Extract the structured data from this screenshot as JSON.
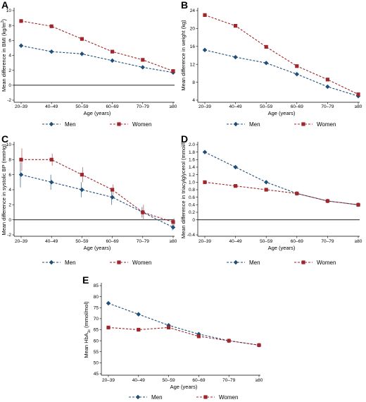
{
  "colors": {
    "men": "#1f4e79",
    "women": "#a0262c",
    "zero_line": "#000000",
    "error_bar": "#c07a7a"
  },
  "legend": {
    "men": "Men",
    "women": "Women"
  },
  "chart_data": [
    {
      "panel": "A",
      "type": "line",
      "categories": [
        "20–39",
        "40–49",
        "50–59",
        "60–69",
        "70–79",
        "≥80"
      ],
      "xlabel": "Age (years)",
      "ylabel": "Mean difference in BMI (kg/m²)",
      "ylim": [
        -2,
        10
      ],
      "yticks": [
        -2,
        0,
        2,
        4,
        6,
        8,
        10
      ],
      "zero_line": true,
      "series": [
        {
          "name": "Men",
          "values": [
            5.3,
            4.5,
            4.2,
            3.3,
            2.4,
            1.7
          ]
        },
        {
          "name": "Women",
          "values": [
            8.6,
            7.9,
            6.2,
            4.5,
            3.4,
            1.9
          ]
        }
      ]
    },
    {
      "panel": "B",
      "type": "line",
      "categories": [
        "20–39",
        "40–49",
        "50–59",
        "60–69",
        "70–79",
        "≥80"
      ],
      "xlabel": "Age (years)",
      "ylabel": "Mean difference in weight (kg)",
      "ylim": [
        4,
        24
      ],
      "yticks": [
        4,
        8,
        12,
        16,
        20,
        24
      ],
      "zero_line": false,
      "series": [
        {
          "name": "Men",
          "values": [
            15.2,
            13.6,
            12.3,
            9.8,
            7.0,
            4.9
          ]
        },
        {
          "name": "Women",
          "values": [
            23.0,
            20.6,
            15.9,
            11.6,
            8.6,
            5.3
          ]
        }
      ]
    },
    {
      "panel": "C",
      "type": "line",
      "categories": [
        "20–39",
        "40–49",
        "50–59",
        "60–69",
        "70–79",
        "≥80"
      ],
      "xlabel": "Age (years)",
      "ylabel": "Mean difference in systolic BP (mmHg)",
      "ylim": [
        -2,
        10
      ],
      "yticks": [
        -2,
        0,
        2,
        4,
        6,
        8,
        10
      ],
      "zero_line": true,
      "series": [
        {
          "name": "Men",
          "values": [
            6.0,
            5.0,
            4.0,
            3.0,
            1.0,
            -1.0
          ],
          "ci": [
            [
              4.3,
              7.7
            ],
            [
              4.0,
              6.0
            ],
            [
              3.0,
              5.0
            ],
            [
              2.0,
              4.0
            ],
            [
              0.3,
              1.7
            ],
            [
              -1.4,
              -0.6
            ]
          ]
        },
        {
          "name": "Women",
          "values": [
            8.0,
            8.0,
            6.0,
            4.0,
            1.0,
            -0.3
          ],
          "ci": [
            [
              6.5,
              9.5
            ],
            [
              7.2,
              8.8
            ],
            [
              5.0,
              7.0
            ],
            [
              3.3,
              4.7
            ],
            [
              0.0,
              2.0
            ],
            [
              -0.8,
              0.2
            ]
          ]
        }
      ]
    },
    {
      "panel": "D",
      "type": "line",
      "categories": [
        "20–39",
        "40–49",
        "50–59",
        "60–69",
        "70–79",
        "≥80"
      ],
      "xlabel": "Age (years)",
      "ylabel": "Mean difference in triacylglycerol (mmol/l)",
      "ylim": [
        -0.4,
        2.0
      ],
      "yticks": [
        -0.4,
        0.0,
        0.2,
        0.4,
        0.6,
        0.8,
        1.0,
        1.2,
        1.4,
        1.6,
        1.8,
        2.0
      ],
      "ytick_labels": [
        "-0.4",
        "0",
        "0.2",
        "0.4",
        "0.6",
        "0.8",
        "1.0",
        "1.2",
        "1.4",
        "1.6",
        "1.8",
        "2.0"
      ],
      "zero_line": true,
      "series": [
        {
          "name": "Men",
          "values": [
            1.8,
            1.4,
            1.0,
            0.7,
            0.5,
            0.4
          ]
        },
        {
          "name": "Women",
          "values": [
            1.0,
            0.9,
            0.8,
            0.7,
            0.5,
            0.4
          ]
        }
      ]
    },
    {
      "panel": "E",
      "type": "line",
      "categories": [
        "20–39",
        "40–49",
        "50–59",
        "60–69",
        "70–79",
        "≥80"
      ],
      "xlabel": "Age (years)",
      "ylabel": "Mean HbA1c (mmol/mol)",
      "ylim": [
        45,
        85
      ],
      "yticks": [
        45,
        50,
        55,
        60,
        65,
        70,
        75,
        80,
        85
      ],
      "zero_line": false,
      "series": [
        {
          "name": "Men",
          "values": [
            77,
            72,
            67,
            63,
            60,
            58
          ]
        },
        {
          "name": "Women",
          "values": [
            66,
            65,
            66,
            62,
            60,
            58
          ]
        }
      ]
    }
  ]
}
